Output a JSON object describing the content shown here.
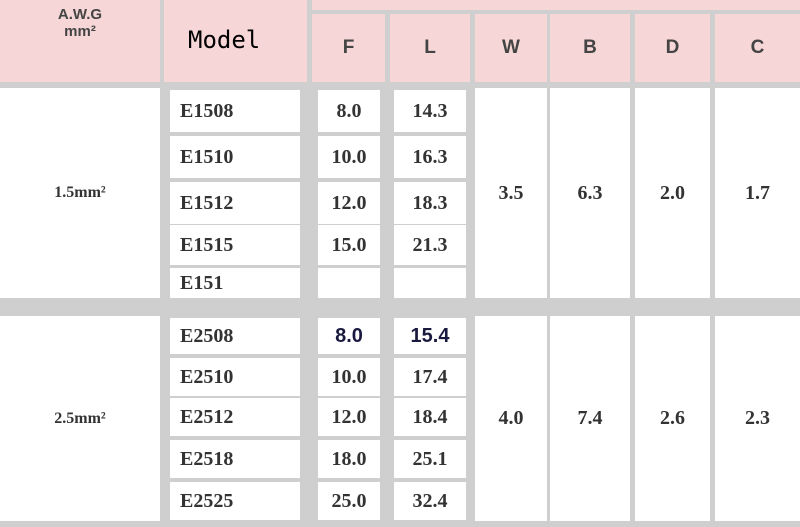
{
  "header": {
    "awg_line1": "A.W.G",
    "awg_line2": "mm²",
    "model": "Model",
    "columns": [
      "F",
      "L",
      "W",
      "B",
      "D",
      "C"
    ]
  },
  "groups": [
    {
      "size": "1.5mm²",
      "W": "3.5",
      "B": "6.3",
      "D": "2.0",
      "C": "1.7",
      "rows": [
        {
          "model": "E1508",
          "F": "8.0",
          "L": "14.3"
        },
        {
          "model": "E1510",
          "F": "10.0",
          "L": "16.3"
        },
        {
          "model": "E1512",
          "F": "12.0",
          "L": "18.3"
        },
        {
          "model": "E1515",
          "F": "15.0",
          "L": "21.3"
        },
        {
          "model": "E151",
          "F": "",
          "L": ""
        }
      ]
    },
    {
      "size": "2.5mm²",
      "W": "4.0",
      "B": "7.4",
      "D": "2.6",
      "C": "2.3",
      "rows": [
        {
          "model": "E2508",
          "F": "8.0",
          "L": "15.4"
        },
        {
          "model": "E2510",
          "F": "10.0",
          "L": "17.4"
        },
        {
          "model": "E2512",
          "F": "12.0",
          "L": "18.4"
        },
        {
          "model": "E2518",
          "F": "18.0",
          "L": "25.1"
        },
        {
          "model": "E2525",
          "F": "25.0",
          "L": "32.4"
        }
      ]
    }
  ]
}
